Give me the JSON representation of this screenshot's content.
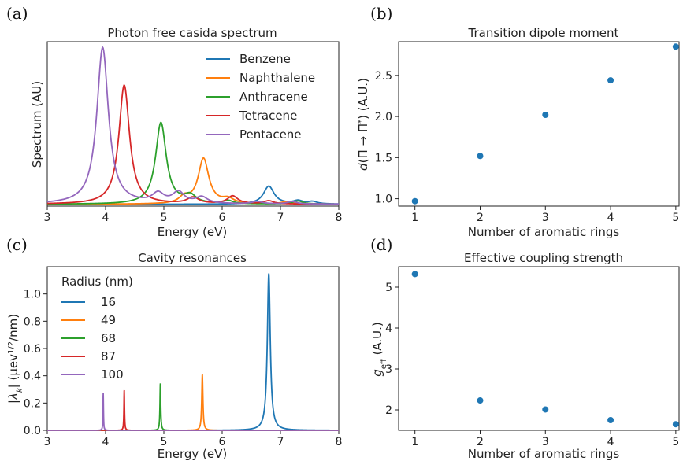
{
  "chart_data": [
    {
      "panel": "(a)",
      "type": "line",
      "title": "Photon free casida spectrum",
      "xlabel": "Energy (eV)",
      "ylabel": "Spectrum (AU)",
      "xlim": [
        3,
        8
      ],
      "ylim": [
        0,
        1.05
      ],
      "xticks": [
        3,
        4,
        5,
        6,
        7,
        8
      ],
      "yticks": [],
      "legend_position": "upper right",
      "series": [
        {
          "name": "Benzene",
          "color": "#1f77b4",
          "peaks": [
            {
              "x": 6.8,
              "h": 0.115,
              "w": 0.11
            },
            {
              "x": 7.3,
              "h": 0.02,
              "w": 0.1
            },
            {
              "x": 7.55,
              "h": 0.015,
              "w": 0.1
            }
          ]
        },
        {
          "name": "Naphthalene",
          "color": "#ff7f0e",
          "peaks": [
            {
              "x": 5.68,
              "h": 0.29,
              "w": 0.11
            },
            {
              "x": 5.35,
              "h": 0.04,
              "w": 0.1
            },
            {
              "x": 6.1,
              "h": 0.03,
              "w": 0.12
            },
            {
              "x": 7.1,
              "h": 0.015,
              "w": 0.1
            }
          ]
        },
        {
          "name": "Anthracene",
          "color": "#2ca02c",
          "peaks": [
            {
              "x": 4.95,
              "h": 0.52,
              "w": 0.11
            },
            {
              "x": 5.45,
              "h": 0.05,
              "w": 0.12
            },
            {
              "x": 6.1,
              "h": 0.02,
              "w": 0.1
            },
            {
              "x": 7.3,
              "h": 0.02,
              "w": 0.1
            }
          ]
        },
        {
          "name": "Tetracene",
          "color": "#d62728",
          "peaks": [
            {
              "x": 4.32,
              "h": 0.76,
              "w": 0.11
            },
            {
              "x": 5.5,
              "h": 0.04,
              "w": 0.12
            },
            {
              "x": 6.18,
              "h": 0.05,
              "w": 0.11
            },
            {
              "x": 6.8,
              "h": 0.02,
              "w": 0.1
            }
          ]
        },
        {
          "name": "Pentacene",
          "color": "#9467bd",
          "peaks": [
            {
              "x": 3.95,
              "h": 1.0,
              "w": 0.12
            },
            {
              "x": 4.9,
              "h": 0.06,
              "w": 0.12
            },
            {
              "x": 5.25,
              "h": 0.07,
              "w": 0.12
            },
            {
              "x": 5.65,
              "h": 0.04,
              "w": 0.12
            },
            {
              "x": 6.6,
              "h": 0.015,
              "w": 0.1
            },
            {
              "x": 7.2,
              "h": 0.015,
              "w": 0.1
            }
          ]
        }
      ]
    },
    {
      "panel": "(b)",
      "type": "scatter",
      "title": "Transition dipole moment",
      "xlabel": "Number of aromatic rings",
      "ylabel": "d(Π → Π*) (A.U.)",
      "xlim": [
        0.75,
        5.05
      ],
      "ylim": [
        0.91,
        2.91
      ],
      "xticks": [
        1,
        2,
        3,
        4,
        5
      ],
      "yticks": [
        1.0,
        1.5,
        2.0,
        2.5
      ],
      "color": "#1f77b4",
      "x": [
        1,
        2,
        3,
        4,
        5
      ],
      "y": [
        0.97,
        1.52,
        2.02,
        2.44,
        2.85
      ]
    },
    {
      "panel": "(c)",
      "type": "line",
      "title": "Cavity resonances",
      "xlabel": "Energy (eV)",
      "ylabel": "|λk| (μev1/2/nm)",
      "xlim": [
        3,
        8
      ],
      "ylim": [
        0,
        1.2
      ],
      "xticks": [
        3,
        4,
        5,
        6,
        7,
        8
      ],
      "yticks": [
        0.0,
        0.2,
        0.4,
        0.6,
        0.8,
        1.0
      ],
      "legend_title": "Radius (nm)",
      "legend_position": "upper left",
      "series": [
        {
          "name": "16",
          "color": "#1f77b4",
          "center": 6.8,
          "peak": 1.15,
          "width": 0.03
        },
        {
          "name": "49",
          "color": "#ff7f0e",
          "center": 5.66,
          "peak": 0.41,
          "width": 0.012
        },
        {
          "name": "68",
          "color": "#2ca02c",
          "center": 4.94,
          "peak": 0.345,
          "width": 0.008
        },
        {
          "name": "87",
          "color": "#d62728",
          "center": 4.32,
          "peak": 0.3,
          "width": 0.006
        },
        {
          "name": "100",
          "color": "#9467bd",
          "center": 3.96,
          "peak": 0.275,
          "width": 0.005
        }
      ]
    },
    {
      "panel": "(d)",
      "type": "scatter",
      "title": "Effective coupling strength",
      "xlabel": "Number of aromatic rings",
      "ylabel": "geff (A.U.)",
      "xlim": [
        0.75,
        5.05
      ],
      "ylim": [
        1.5,
        5.5
      ],
      "xticks": [
        1,
        2,
        3,
        4,
        5
      ],
      "yticks": [
        2,
        3,
        4,
        5
      ],
      "color": "#1f77b4",
      "x": [
        1,
        2,
        3,
        4,
        5
      ],
      "y": [
        5.32,
        2.23,
        2.01,
        1.75,
        1.65
      ]
    }
  ]
}
